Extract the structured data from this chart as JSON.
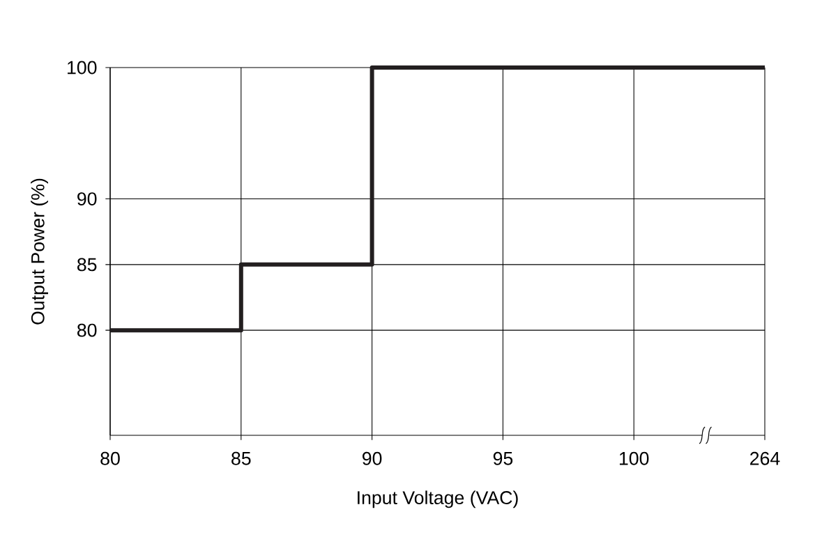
{
  "chart_data": {
    "type": "step",
    "xlabel": "Input Voltage (VAC)",
    "ylabel": "Output Power (%)",
    "categories": [
      "80",
      "85",
      "90",
      "95",
      "100",
      "264"
    ],
    "values": [
      80,
      85,
      100,
      100,
      100,
      100
    ],
    "color": "#231f20",
    "ylim": [
      72,
      100
    ],
    "yticks": [
      80,
      85,
      90,
      100
    ],
    "grid": true
  }
}
